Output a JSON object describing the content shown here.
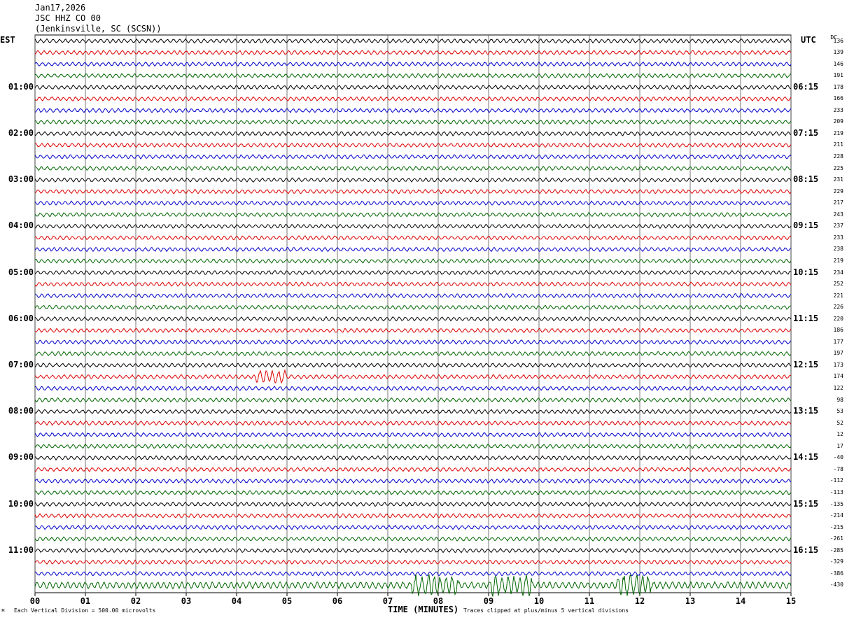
{
  "header": {
    "date": "Jan17,2026",
    "channel": "JSC HHZ CO 00",
    "station": "(Jenkinsville, SC (SCSN))"
  },
  "left_label": "EST",
  "right_label": "UTC",
  "dc_label": "DC",
  "footer": {
    "scale": "Each Vertical Division =  500.00 microvolts",
    "xlabel": "TIME (MINUTES)",
    "clip": "Traces clipped at plus/minus 5 vertical divisions",
    "mark": "⌘"
  },
  "colors": {
    "black": "#000000",
    "red": "#dd0000",
    "blue": "#0000cc",
    "green": "#006600",
    "grid": "#555555"
  },
  "chart_data": {
    "type": "line",
    "title": "Jan17,2026 JSC HHZ CO 00 (Jenkinsville, SC (SCSN))",
    "xlabel": "TIME (MINUTES)",
    "ylabel_left": "EST",
    "ylabel_right": "UTC",
    "xlim": [
      0,
      15
    ],
    "x_ticks": [
      "00",
      "01",
      "02",
      "03",
      "04",
      "05",
      "06",
      "07",
      "08",
      "09",
      "10",
      "11",
      "12",
      "13",
      "14",
      "15"
    ],
    "left_ticks": [
      "01:00",
      "02:00",
      "03:00",
      "04:00",
      "05:00",
      "06:00",
      "07:00",
      "08:00",
      "09:00",
      "10:00",
      "11:00"
    ],
    "right_ticks": [
      "06:15",
      "07:15",
      "08:15",
      "09:15",
      "10:15",
      "11:15",
      "12:15",
      "13:15",
      "14:15",
      "15:15",
      "16:15"
    ],
    "trace_colors": [
      "black",
      "red",
      "blue",
      "green"
    ],
    "dc_offsets": [
      136,
      139,
      146,
      191,
      178,
      166,
      233,
      209,
      219,
      211,
      228,
      225,
      231,
      229,
      217,
      243,
      237,
      233,
      238,
      219,
      234,
      252,
      221,
      226,
      220,
      186,
      177,
      197,
      173,
      174,
      122,
      98,
      53,
      52,
      12,
      17,
      -40,
      -78,
      -112,
      -113,
      -135,
      -214,
      -215,
      -261,
      -285,
      -329,
      -386,
      -430
    ],
    "grid": true
  }
}
